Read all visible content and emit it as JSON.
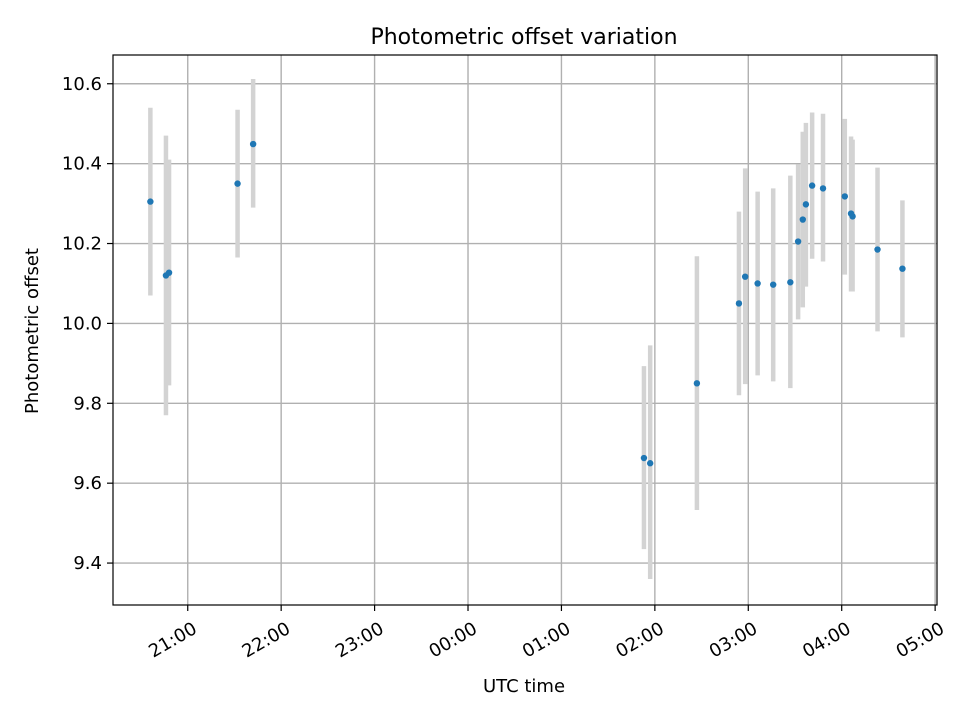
{
  "chart_data": {
    "type": "scatter",
    "title": "Photometric offset variation",
    "xlabel": "UTC time",
    "ylabel": "Photometric offset",
    "x_ticks": [
      "21:00",
      "22:00",
      "23:00",
      "00:00",
      "01:00",
      "02:00",
      "03:00",
      "04:00",
      "05:00"
    ],
    "x_tick_hours": [
      21,
      22,
      23,
      24,
      25,
      26,
      27,
      28,
      29
    ],
    "y_ticks": [
      "9.4",
      "9.6",
      "9.8",
      "10.0",
      "10.2",
      "10.4",
      "10.6"
    ],
    "y_tick_values": [
      9.4,
      9.6,
      9.8,
      10.0,
      10.2,
      10.4,
      10.6
    ],
    "xlim_hours": [
      20.2,
      29.02
    ],
    "ylim": [
      9.295,
      10.672
    ],
    "grid": true,
    "series": [
      {
        "marker_color": "#1f77b4",
        "errorbar_color": "#d3d3d3",
        "points": [
          {
            "t": "20:36",
            "y": 10.305,
            "lo": 10.07,
            "hi": 10.54
          },
          {
            "t": "20:46",
            "y": 10.12,
            "lo": 9.77,
            "hi": 10.47
          },
          {
            "t": "20:48",
            "y": 10.127,
            "lo": 9.845,
            "hi": 10.41
          },
          {
            "t": "21:32",
            "y": 10.35,
            "lo": 10.165,
            "hi": 10.535
          },
          {
            "t": "21:42",
            "y": 10.449,
            "lo": 10.29,
            "hi": 10.612
          },
          {
            "t": "01:53",
            "y": 9.663,
            "lo": 9.435,
            "hi": 9.893
          },
          {
            "t": "01:57",
            "y": 9.65,
            "lo": 9.36,
            "hi": 9.945
          },
          {
            "t": "02:27",
            "y": 9.85,
            "lo": 9.533,
            "hi": 10.168
          },
          {
            "t": "02:54",
            "y": 10.05,
            "lo": 9.82,
            "hi": 10.28
          },
          {
            "t": "02:58",
            "y": 10.117,
            "lo": 9.848,
            "hi": 10.388
          },
          {
            "t": "03:06",
            "y": 10.1,
            "lo": 9.87,
            "hi": 10.33
          },
          {
            "t": "03:16",
            "y": 10.097,
            "lo": 9.855,
            "hi": 10.338
          },
          {
            "t": "03:27",
            "y": 10.103,
            "lo": 9.838,
            "hi": 10.37
          },
          {
            "t": "03:32",
            "y": 10.205,
            "lo": 10.01,
            "hi": 10.398
          },
          {
            "t": "03:35",
            "y": 10.26,
            "lo": 10.04,
            "hi": 10.48
          },
          {
            "t": "03:37",
            "y": 10.298,
            "lo": 10.092,
            "hi": 10.502
          },
          {
            "t": "03:41",
            "y": 10.345,
            "lo": 10.162,
            "hi": 10.528
          },
          {
            "t": "03:48",
            "y": 10.338,
            "lo": 10.155,
            "hi": 10.525
          },
          {
            "t": "04:02",
            "y": 10.318,
            "lo": 10.122,
            "hi": 10.512
          },
          {
            "t": "04:06",
            "y": 10.275,
            "lo": 10.08,
            "hi": 10.468
          },
          {
            "t": "04:07",
            "y": 10.268,
            "lo": 10.08,
            "hi": 10.46
          },
          {
            "t": "04:23",
            "y": 10.185,
            "lo": 9.98,
            "hi": 10.39
          },
          {
            "t": "04:39",
            "y": 10.137,
            "lo": 9.965,
            "hi": 10.308
          }
        ]
      }
    ]
  }
}
